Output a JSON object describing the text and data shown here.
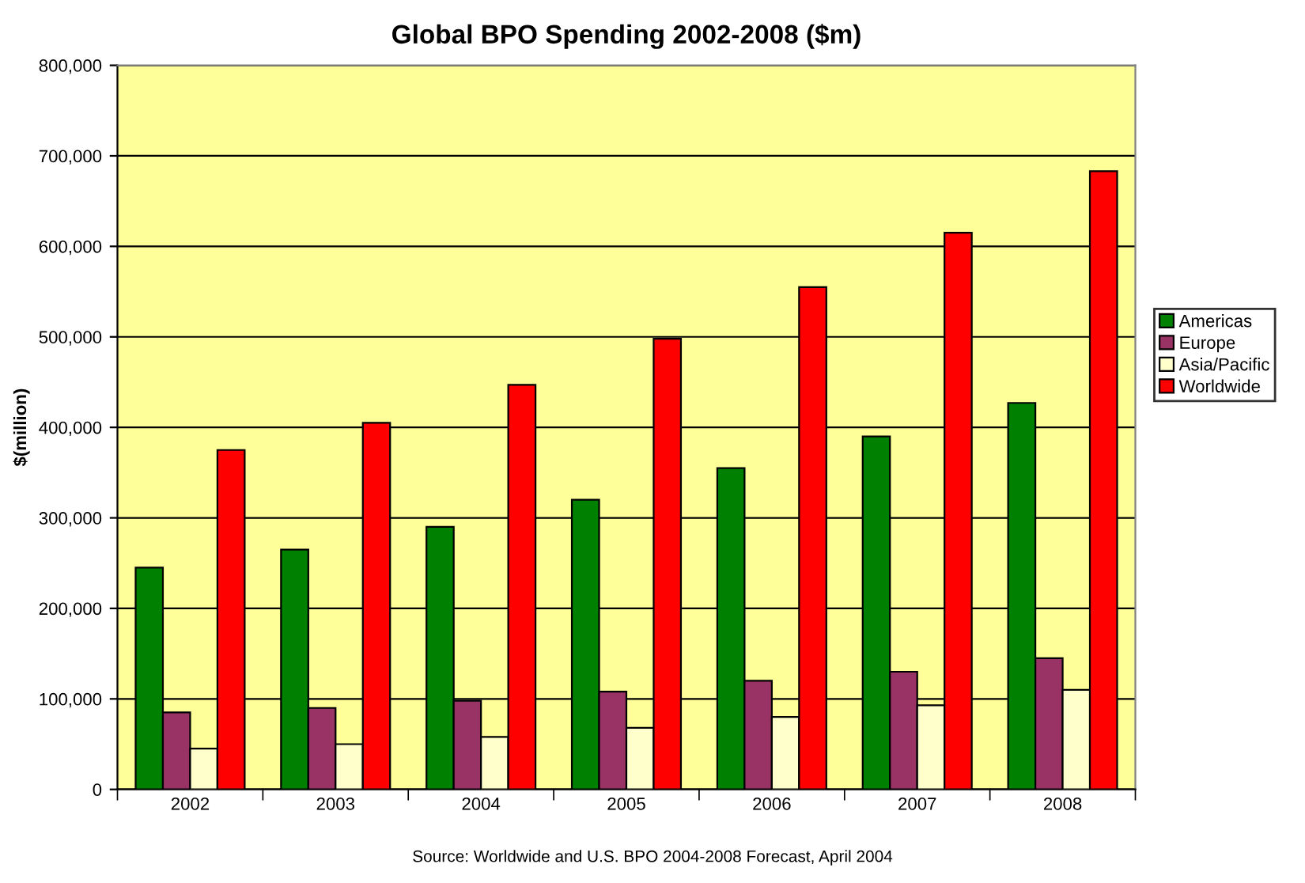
{
  "chart_data": {
    "type": "bar",
    "title": "Global BPO Spending 2002-2008 ($m)",
    "ylabel": "$(million)",
    "categories": [
      "2002",
      "2003",
      "2004",
      "2005",
      "2006",
      "2007",
      "2008"
    ],
    "series": [
      {
        "name": "Americas",
        "color": "#008000",
        "values": [
          245000,
          265000,
          290000,
          320000,
          355000,
          390000,
          427000
        ]
      },
      {
        "name": "Europe",
        "color": "#993366",
        "values": [
          85000,
          90000,
          98000,
          108000,
          120000,
          130000,
          145000
        ]
      },
      {
        "name": "Asia/Pacific",
        "color": "#ffffcc",
        "values": [
          45000,
          50000,
          58000,
          68000,
          80000,
          93000,
          110000
        ]
      },
      {
        "name": "Worldwide",
        "color": "#ff0000",
        "values": [
          375000,
          405000,
          447000,
          498000,
          555000,
          615000,
          683000
        ]
      }
    ],
    "ylim": [
      0,
      800000
    ],
    "yticks": [
      {
        "value": 0,
        "label": "0"
      },
      {
        "value": 100000,
        "label": "100,000"
      },
      {
        "value": 200000,
        "label": "200,000"
      },
      {
        "value": 300000,
        "label": "300,000"
      },
      {
        "value": 400000,
        "label": "400,000"
      },
      {
        "value": 500000,
        "label": "500,000"
      },
      {
        "value": 600000,
        "label": "600,000"
      },
      {
        "value": 700000,
        "label": "700,000"
      },
      {
        "value": 800000,
        "label": "800,000"
      }
    ],
    "grid": "y",
    "legend": "right",
    "annotations": [
      "Source: Worldwide and U.S. BPO 2004-2008 Forecast, April 2004"
    ]
  }
}
